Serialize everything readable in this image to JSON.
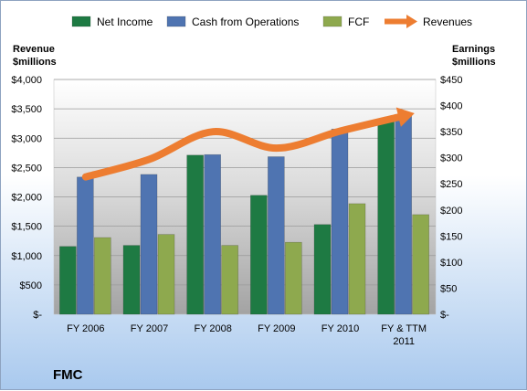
{
  "chart_data": {
    "type": "bar",
    "title": "FMC",
    "categories": [
      "FY 2006",
      "FY 2007",
      "FY 2008",
      "FY 2009",
      "FY 2010",
      "FY & TTM 2011"
    ],
    "category_lines": [
      [
        "FY 2006"
      ],
      [
        "FY 2007"
      ],
      [
        "FY 2008"
      ],
      [
        "FY 2009"
      ],
      [
        "FY 2010"
      ],
      [
        "FY & TTM",
        "2011"
      ]
    ],
    "y_left": {
      "label_lines": [
        "Revenue",
        "$millions"
      ],
      "ylim": [
        0,
        4000
      ],
      "ticks": [
        "$-",
        "$500",
        "$1,000",
        "$1,500",
        "$2,000",
        "$2,500",
        "$3,000",
        "$3,500",
        "$4,000"
      ]
    },
    "y_right": {
      "label_lines": [
        "Earnings",
        "$millions"
      ],
      "ylim": [
        0,
        450
      ],
      "ticks": [
        "$-",
        "$50",
        "$100",
        "$150",
        "$200",
        "$250",
        "$300",
        "$350",
        "$400",
        "$450"
      ]
    },
    "series": [
      {
        "name": "Net Income",
        "type": "bar",
        "axis": "right",
        "color": "#1e7a43",
        "values": [
          130,
          132,
          305,
          228,
          172,
          375
        ]
      },
      {
        "name": "Cash from Operations",
        "type": "bar",
        "axis": "right",
        "color": "#4f74b1",
        "values": [
          263,
          268,
          306,
          302,
          355,
          383
        ]
      },
      {
        "name": "FCF",
        "type": "bar",
        "axis": "right",
        "color": "#8ea94e",
        "values": [
          147,
          153,
          132,
          138,
          212,
          191
        ]
      },
      {
        "name": "Revenues",
        "type": "line",
        "axis": "left",
        "color": "#ed7d31",
        "values": [
          2340,
          2640,
          3110,
          2830,
          3120,
          3380
        ]
      }
    ],
    "grid": true,
    "legend_position": "top"
  }
}
